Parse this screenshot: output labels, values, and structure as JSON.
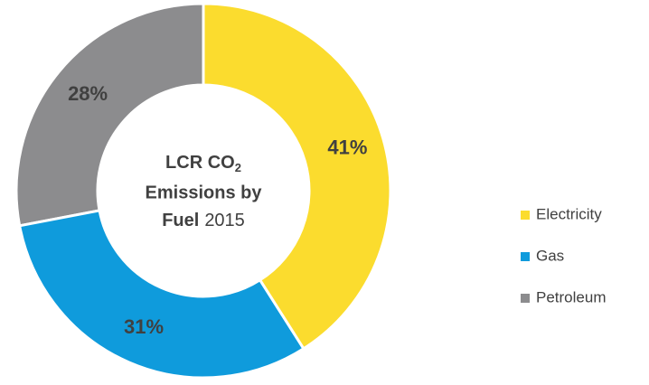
{
  "chart_data": {
    "type": "donut",
    "title": [
      "LCR CO",
      "2",
      "Emissions by",
      "Fuel",
      "2015"
    ],
    "categories": [
      "Electricity",
      "Gas",
      "Petroleum"
    ],
    "values": [
      41,
      31,
      28
    ],
    "value_labels": [
      "41%",
      "31%",
      "28%"
    ],
    "colors": [
      "#fbdc2e",
      "#0f9bdc",
      "#8c8c8e"
    ],
    "legend": "right"
  }
}
